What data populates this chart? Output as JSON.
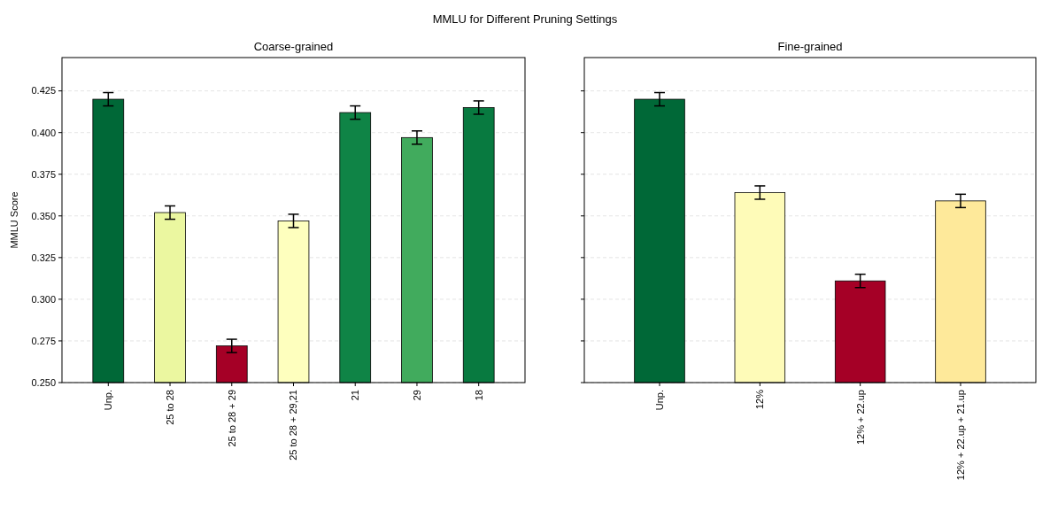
{
  "chart_data": [
    {
      "type": "bar",
      "title": "Coarse-grained",
      "ylabel": "MMLU Score",
      "annotations": [
        "MMLU for Different Pruning Settings"
      ],
      "categories": [
        "Unp.",
        "25 to 28",
        "25 to 28 + 29",
        "25 to 28 + 29,21",
        "21",
        "29",
        "18"
      ],
      "values": [
        0.42,
        0.352,
        0.272,
        0.347,
        0.412,
        0.397,
        0.415
      ],
      "colors": [
        "#006837",
        "#ebf7a0",
        "#a50026",
        "#feffbe",
        "#0f8446",
        "#41ab5d",
        "#087a40"
      ],
      "errors": [
        0.004,
        0.004,
        0.004,
        0.004,
        0.004,
        0.004,
        0.004
      ],
      "ylim": [
        0.25,
        0.445
      ],
      "yticks": [
        {
          "value": 0.25,
          "label": "0.250"
        },
        0.275,
        {
          "value": 0.3,
          "label": "0.300"
        },
        0.325,
        {
          "value": 0.35,
          "label": "0.350"
        },
        0.375,
        {
          "value": 0.4,
          "label": "0.400"
        },
        0.425
      ],
      "grid": "y"
    },
    {
      "type": "bar",
      "title": "Fine-grained",
      "categories": [
        "Unp.",
        "12%",
        "12% + 22.up",
        "12% + 22.up + 21.up"
      ],
      "values": [
        0.42,
        0.364,
        0.311,
        0.359
      ],
      "colors": [
        "#006837",
        "#fefbb8",
        "#a50026",
        "#fee99a"
      ],
      "errors": [
        0.004,
        0.004,
        0.004,
        0.004
      ],
      "ylim": [
        0.25,
        0.445
      ],
      "yticks": [
        {
          "value": 0.25,
          "label": null
        },
        {
          "value": 0.275,
          "label": null
        },
        {
          "value": 0.3,
          "label": null
        },
        {
          "value": 0.325,
          "label": null
        },
        {
          "value": 0.35,
          "label": null
        },
        {
          "value": 0.375,
          "label": null
        },
        {
          "value": 0.4,
          "label": null
        },
        {
          "value": 0.425,
          "label": null
        }
      ],
      "grid": "y",
      "tick_labels": "x"
    }
  ]
}
